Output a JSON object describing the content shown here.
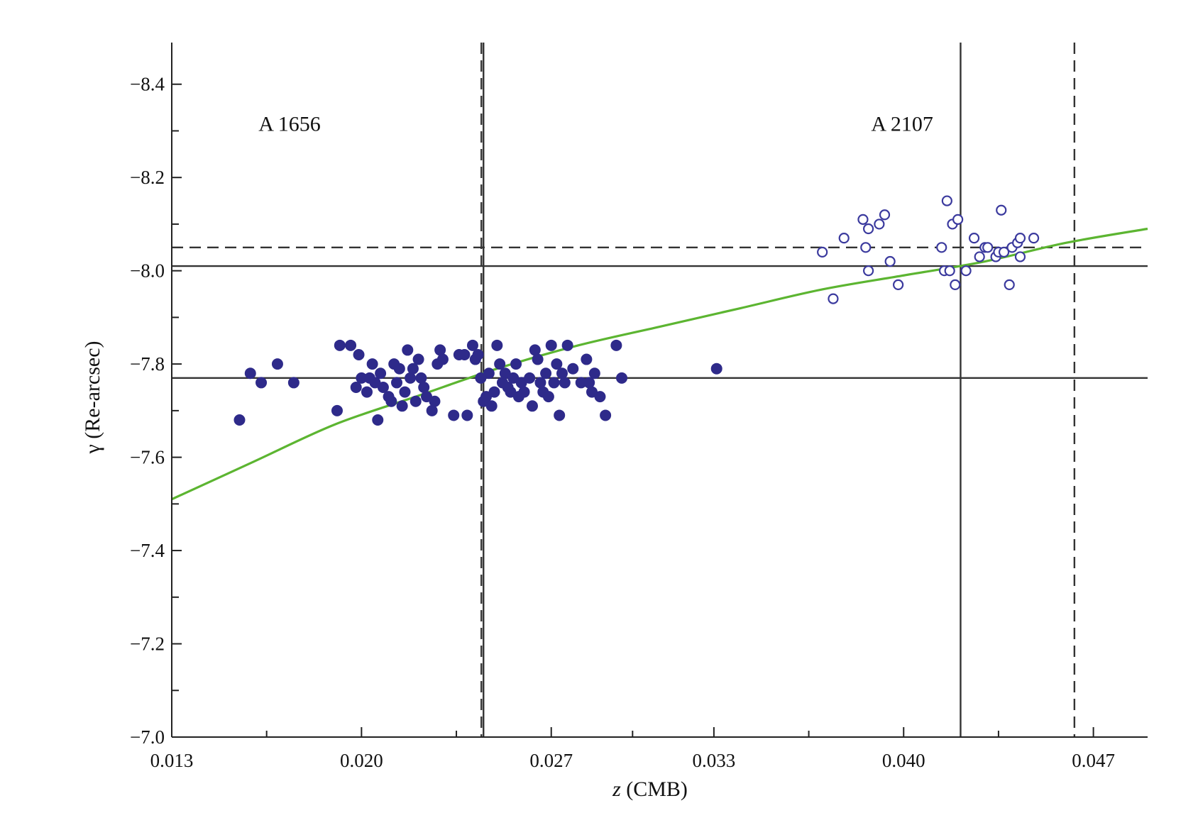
{
  "chart_data": {
    "type": "scatter",
    "xlabel_var": "z",
    "xlabel_rest": " (CMB)",
    "ylabel": "γ (Re-arcsec)",
    "xlim": [
      0.013,
      0.049
    ],
    "ylim": [
      -7.0,
      -8.5
    ],
    "x_ticks": [
      0.013,
      0.02,
      0.027,
      0.033,
      0.04,
      0.047
    ],
    "x_tick_labels": [
      "0.013",
      "0.020",
      "0.027",
      "0.033",
      "0.040",
      "0.047"
    ],
    "x_minor_ticks": [
      0.0165,
      0.0235,
      0.03,
      0.0365,
      0.0435
    ],
    "y_ticks": [
      -7.0,
      -7.2,
      -7.4,
      -7.6,
      -7.8,
      -8.0,
      -8.2,
      -8.4
    ],
    "y_tick_labels": [
      "−7.0",
      "−7.2",
      "−7.4",
      "−7.6",
      "−7.8",
      "−8.0",
      "−8.2",
      "−8.4"
    ],
    "y_minor_ticks": [
      -7.1,
      -7.3,
      -7.5,
      -7.7,
      -7.9,
      -8.1,
      -8.3
    ],
    "grid": false,
    "annotations": [
      {
        "text": "A 1656",
        "x": 0.0162,
        "y": -8.3
      },
      {
        "text": "A 2107",
        "x": 0.0388,
        "y": -8.3
      }
    ],
    "reference_lines": [
      {
        "orientation": "vertical",
        "value": 0.0245,
        "style": "solid"
      },
      {
        "orientation": "vertical",
        "value": 0.0245,
        "style": "dashed"
      },
      {
        "orientation": "vertical",
        "value": 0.0421,
        "style": "solid"
      },
      {
        "orientation": "vertical",
        "value": 0.0463,
        "style": "dashed"
      },
      {
        "orientation": "horizontal",
        "value": -8.05,
        "style": "dashed"
      },
      {
        "orientation": "horizontal",
        "value": -8.01,
        "style": "solid"
      },
      {
        "orientation": "horizontal",
        "value": -7.77,
        "style": "solid"
      }
    ],
    "curve": {
      "color": "#5cb531",
      "x": [
        0.013,
        0.016,
        0.019,
        0.022,
        0.025,
        0.028,
        0.031,
        0.034,
        0.037,
        0.04,
        0.043,
        0.046,
        0.049
      ],
      "y": [
        -7.51,
        -7.59,
        -7.67,
        -7.73,
        -7.79,
        -7.84,
        -7.88,
        -7.92,
        -7.96,
        -7.99,
        -8.02,
        -8.06,
        -8.09
      ]
    },
    "series": [
      {
        "marker": "filled-circle",
        "color": "#2e2a8a",
        "points": [
          [
            0.0155,
            -7.68
          ],
          [
            0.0159,
            -7.78
          ],
          [
            0.0163,
            -7.76
          ],
          [
            0.0169,
            -7.8
          ],
          [
            0.0175,
            -7.76
          ],
          [
            0.0191,
            -7.7
          ],
          [
            0.0192,
            -7.84
          ],
          [
            0.0196,
            -7.84
          ],
          [
            0.0198,
            -7.75
          ],
          [
            0.0199,
            -7.82
          ],
          [
            0.02,
            -7.77
          ],
          [
            0.0202,
            -7.74
          ],
          [
            0.0203,
            -7.77
          ],
          [
            0.0204,
            -7.8
          ],
          [
            0.0205,
            -7.76
          ],
          [
            0.0206,
            -7.68
          ],
          [
            0.0207,
            -7.78
          ],
          [
            0.0208,
            -7.75
          ],
          [
            0.021,
            -7.73
          ],
          [
            0.0211,
            -7.72
          ],
          [
            0.0212,
            -7.8
          ],
          [
            0.0213,
            -7.76
          ],
          [
            0.0214,
            -7.79
          ],
          [
            0.0215,
            -7.71
          ],
          [
            0.0216,
            -7.74
          ],
          [
            0.0217,
            -7.83
          ],
          [
            0.0218,
            -7.77
          ],
          [
            0.0219,
            -7.79
          ],
          [
            0.022,
            -7.72
          ],
          [
            0.0221,
            -7.81
          ],
          [
            0.0222,
            -7.77
          ],
          [
            0.0223,
            -7.75
          ],
          [
            0.0224,
            -7.73
          ],
          [
            0.0226,
            -7.7
          ],
          [
            0.0227,
            -7.72
          ],
          [
            0.0228,
            -7.8
          ],
          [
            0.0229,
            -7.83
          ],
          [
            0.023,
            -7.81
          ],
          [
            0.0234,
            -7.69
          ],
          [
            0.0236,
            -7.82
          ],
          [
            0.0238,
            -7.82
          ],
          [
            0.0239,
            -7.69
          ],
          [
            0.0241,
            -7.84
          ],
          [
            0.0242,
            -7.81
          ],
          [
            0.0243,
            -7.82
          ],
          [
            0.0244,
            -7.77
          ],
          [
            0.0245,
            -7.72
          ],
          [
            0.0246,
            -7.73
          ],
          [
            0.0247,
            -7.78
          ],
          [
            0.0248,
            -7.71
          ],
          [
            0.0249,
            -7.74
          ],
          [
            0.025,
            -7.84
          ],
          [
            0.0251,
            -7.8
          ],
          [
            0.0252,
            -7.76
          ],
          [
            0.0253,
            -7.78
          ],
          [
            0.0254,
            -7.75
          ],
          [
            0.0255,
            -7.74
          ],
          [
            0.0256,
            -7.77
          ],
          [
            0.0257,
            -7.8
          ],
          [
            0.0258,
            -7.73
          ],
          [
            0.0259,
            -7.76
          ],
          [
            0.026,
            -7.74
          ],
          [
            0.0262,
            -7.77
          ],
          [
            0.0263,
            -7.71
          ],
          [
            0.0264,
            -7.83
          ],
          [
            0.0265,
            -7.81
          ],
          [
            0.0266,
            -7.76
          ],
          [
            0.0267,
            -7.74
          ],
          [
            0.0268,
            -7.78
          ],
          [
            0.0269,
            -7.73
          ],
          [
            0.027,
            -7.84
          ],
          [
            0.0271,
            -7.76
          ],
          [
            0.0272,
            -7.8
          ],
          [
            0.0273,
            -7.69
          ],
          [
            0.0274,
            -7.78
          ],
          [
            0.0275,
            -7.76
          ],
          [
            0.0276,
            -7.84
          ],
          [
            0.0278,
            -7.79
          ],
          [
            0.0281,
            -7.76
          ],
          [
            0.0283,
            -7.81
          ],
          [
            0.0284,
            -7.76
          ],
          [
            0.0285,
            -7.74
          ],
          [
            0.0286,
            -7.78
          ],
          [
            0.0288,
            -7.73
          ],
          [
            0.029,
            -7.69
          ],
          [
            0.0294,
            -7.84
          ],
          [
            0.0296,
            -7.77
          ],
          [
            0.0331,
            -7.79
          ]
        ]
      },
      {
        "marker": "open-circle",
        "color": "#3b3a9e",
        "points": [
          [
            0.037,
            -8.04
          ],
          [
            0.0374,
            -7.94
          ],
          [
            0.0378,
            -8.07
          ],
          [
            0.0385,
            -8.11
          ],
          [
            0.0386,
            -8.05
          ],
          [
            0.0387,
            -8.09
          ],
          [
            0.0387,
            -8.0
          ],
          [
            0.0391,
            -8.1
          ],
          [
            0.0393,
            -8.12
          ],
          [
            0.0395,
            -8.02
          ],
          [
            0.0398,
            -7.97
          ],
          [
            0.0414,
            -8.05
          ],
          [
            0.0415,
            -8.0
          ],
          [
            0.0416,
            -8.15
          ],
          [
            0.0417,
            -8.0
          ],
          [
            0.0418,
            -8.1
          ],
          [
            0.0419,
            -7.97
          ],
          [
            0.042,
            -8.11
          ],
          [
            0.0423,
            -8.0
          ],
          [
            0.0426,
            -8.07
          ],
          [
            0.0428,
            -8.03
          ],
          [
            0.043,
            -8.05
          ],
          [
            0.0431,
            -8.05
          ],
          [
            0.0434,
            -8.03
          ],
          [
            0.0435,
            -8.04
          ],
          [
            0.0436,
            -8.13
          ],
          [
            0.0437,
            -8.04
          ],
          [
            0.0439,
            -7.97
          ],
          [
            0.044,
            -8.05
          ],
          [
            0.0442,
            -8.06
          ],
          [
            0.0443,
            -8.07
          ],
          [
            0.0443,
            -8.03
          ],
          [
            0.0448,
            -8.07
          ]
        ]
      }
    ]
  }
}
